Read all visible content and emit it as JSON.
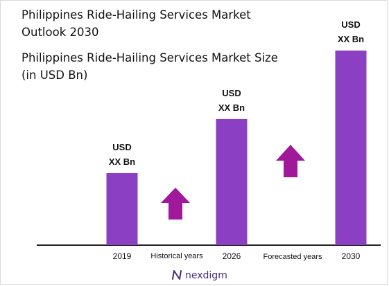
{
  "colors": {
    "bar": "#8b3fc2",
    "arrow": "#a0199b",
    "axis": "#222222",
    "logo": "#4a2a7a"
  },
  "chart_data": {
    "type": "bar",
    "title_line1": "Philippines Ride-Hailing Services Market",
    "title_line2": "Outlook 2030",
    "subtitle_line1": "Philippines Ride-Hailing Services Market Size",
    "subtitle_line2": "(in USD Bn)",
    "categories": [
      "2019",
      "2026",
      "2030"
    ],
    "values": [
      1.0,
      1.75,
      2.7
    ],
    "data_labels": [
      {
        "line1": "USD",
        "line2": "XX Bn"
      },
      {
        "line1": "USD",
        "line2": "XX Bn"
      },
      {
        "line1": "USD",
        "line2": "XX Bn"
      }
    ],
    "ylim": [
      0,
      3.2
    ],
    "grid": false,
    "annotations": [
      {
        "text": "Historical years",
        "icon": "up-arrow-icon"
      },
      {
        "text": "Forecasted years",
        "icon": "up-arrow-icon"
      }
    ]
  },
  "logo": {
    "text": "nexdigm",
    "icon": "nexdigm-n-icon"
  }
}
